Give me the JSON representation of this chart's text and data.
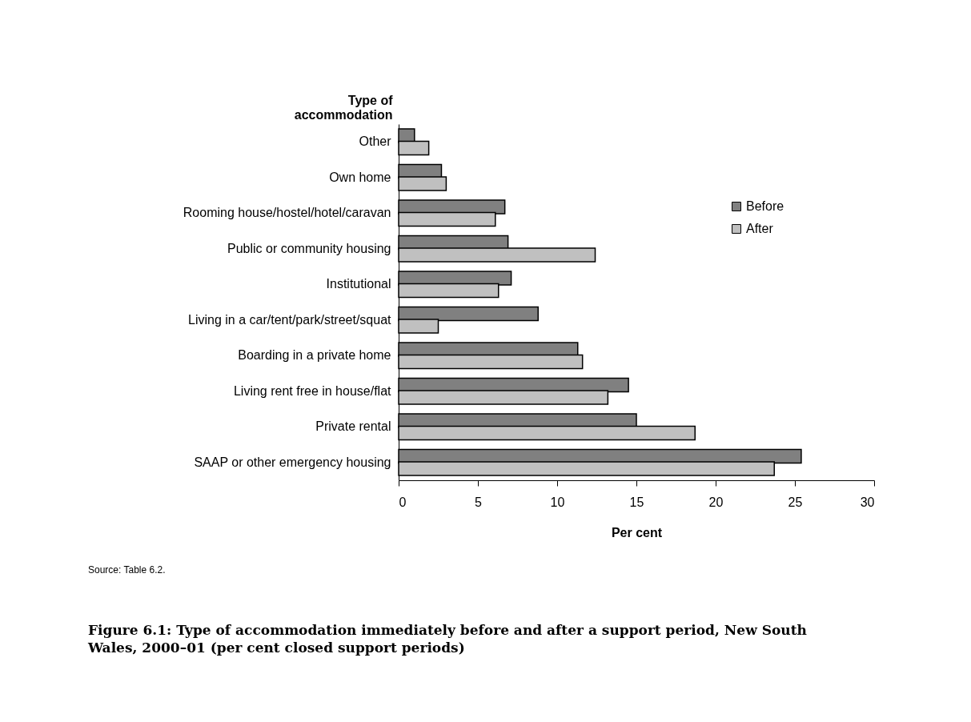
{
  "chart_data": {
    "type": "bar",
    "orientation": "horizontal",
    "title": "Figure 6.1: Type of accommodation immediately before and after a support period, New South Wales, 2000–01 (per cent closed support periods)",
    "ylabel": "Type of accommodation",
    "xlabel": "Per cent",
    "annotations": [
      "Source: Table 6.2."
    ],
    "categories": [
      "Other",
      "Own home",
      "Rooming house/hostel/hotel/caravan",
      "Public or community housing",
      "Institutional",
      "Living in a car/tent/park/street/squat",
      "Boarding in a private home",
      "Living rent free in house/flat",
      "Private rental",
      "SAAP or other emergency housing"
    ],
    "series": [
      {
        "name": "Before",
        "color": "#808080",
        "values": [
          1.0,
          2.7,
          6.7,
          6.9,
          7.1,
          8.8,
          11.3,
          14.5,
          15.0,
          25.4
        ]
      },
      {
        "name": "After",
        "color": "#c0c0c0",
        "values": [
          1.9,
          3.0,
          6.1,
          12.4,
          6.3,
          2.5,
          11.6,
          13.2,
          18.7,
          23.7
        ]
      }
    ],
    "xlim": [
      0,
      30
    ],
    "xticks": [
      0,
      5,
      10,
      15,
      20,
      25,
      30
    ],
    "grid": false,
    "legend": "right"
  }
}
